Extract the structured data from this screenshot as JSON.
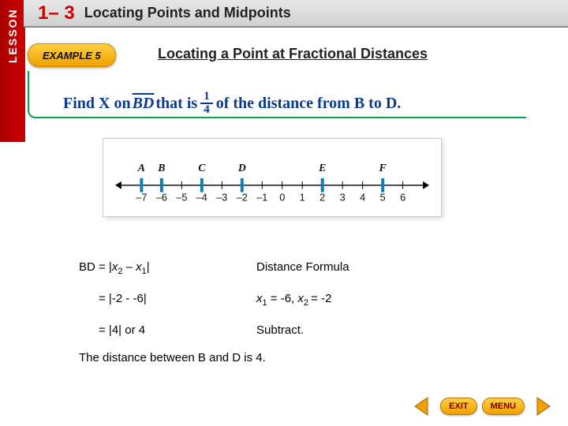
{
  "lesson": {
    "tab": "LESSON",
    "number": "1– 3",
    "title": "Locating Points and Midpoints"
  },
  "example": {
    "pill": "EXAMPLE 5",
    "subtitle": "Locating a Point at Fractional Distances"
  },
  "prompt": {
    "pre": "Find X on ",
    "segment": "BD",
    "mid": " that is ",
    "frac_n": "1",
    "frac_d": "4",
    "post": " of the distance from B to D."
  },
  "numberline": {
    "points": [
      {
        "label": "A",
        "x": -7
      },
      {
        "label": "B",
        "x": -6
      },
      {
        "label": "C",
        "x": -4
      },
      {
        "label": "D",
        "x": -2
      },
      {
        "label": "E",
        "x": 2
      },
      {
        "label": "F",
        "x": 5
      }
    ],
    "min": -8,
    "max": 7,
    "tick_color": "#0b7fb5",
    "axis_color": "#000"
  },
  "solution": {
    "rows": [
      {
        "lhs_html": "BD = |<span class='var'>x</span><sub>2</sub> – <span class='var'>x</span><sub>1</sub>|",
        "rhs_html": "Distance Formula"
      },
      {
        "lhs_html": "&nbsp;&nbsp;&nbsp;&nbsp;&nbsp;&nbsp;= |-2 - -6|",
        "rhs_html": "<span class='var'>x</span><sub>1</sub> = -6, <span class='var'>x</span><sub>2 </sub>= -2"
      },
      {
        "lhs_html": "&nbsp;&nbsp;&nbsp;&nbsp;&nbsp;&nbsp;= |4| or 4",
        "rhs_html": "Subtract."
      }
    ],
    "conclusion": "The distance between B and D is 4."
  },
  "nav": {
    "exit": "EXIT",
    "menu": "MENU"
  },
  "colors": {
    "red": "#c00000",
    "green": "#00a548",
    "blue_text": "#0a3b8f",
    "yellow_grad_top": "#ffd040",
    "yellow_grad_bot": "#f0a000"
  }
}
